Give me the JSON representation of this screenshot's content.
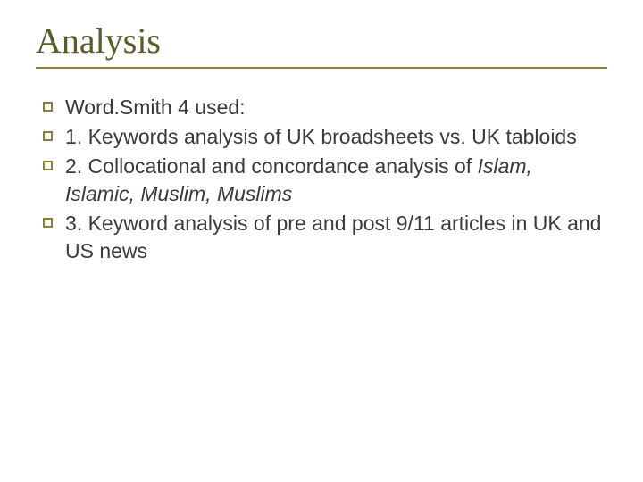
{
  "title_color": "#5a5a2a",
  "rule_color": "#877e39",
  "marker_border_color": "#8a8038",
  "text_color": "#3a3a3a",
  "background_color": "#ffffff",
  "title_fontsize": 40,
  "body_fontsize": 23,
  "title": "Analysis",
  "bullets": [
    {
      "plain": "Word.Smith 4 used:"
    },
    {
      "plain": "1. Keywords analysis of UK broadsheets vs. UK tabloids"
    },
    {
      "prefix": "2. Collocational and concordance analysis of ",
      "italic": "Islam, Islamic, Muslim, Muslims"
    },
    {
      "plain": "3. Keyword analysis of pre and post 9/11 articles in UK and US news"
    }
  ]
}
